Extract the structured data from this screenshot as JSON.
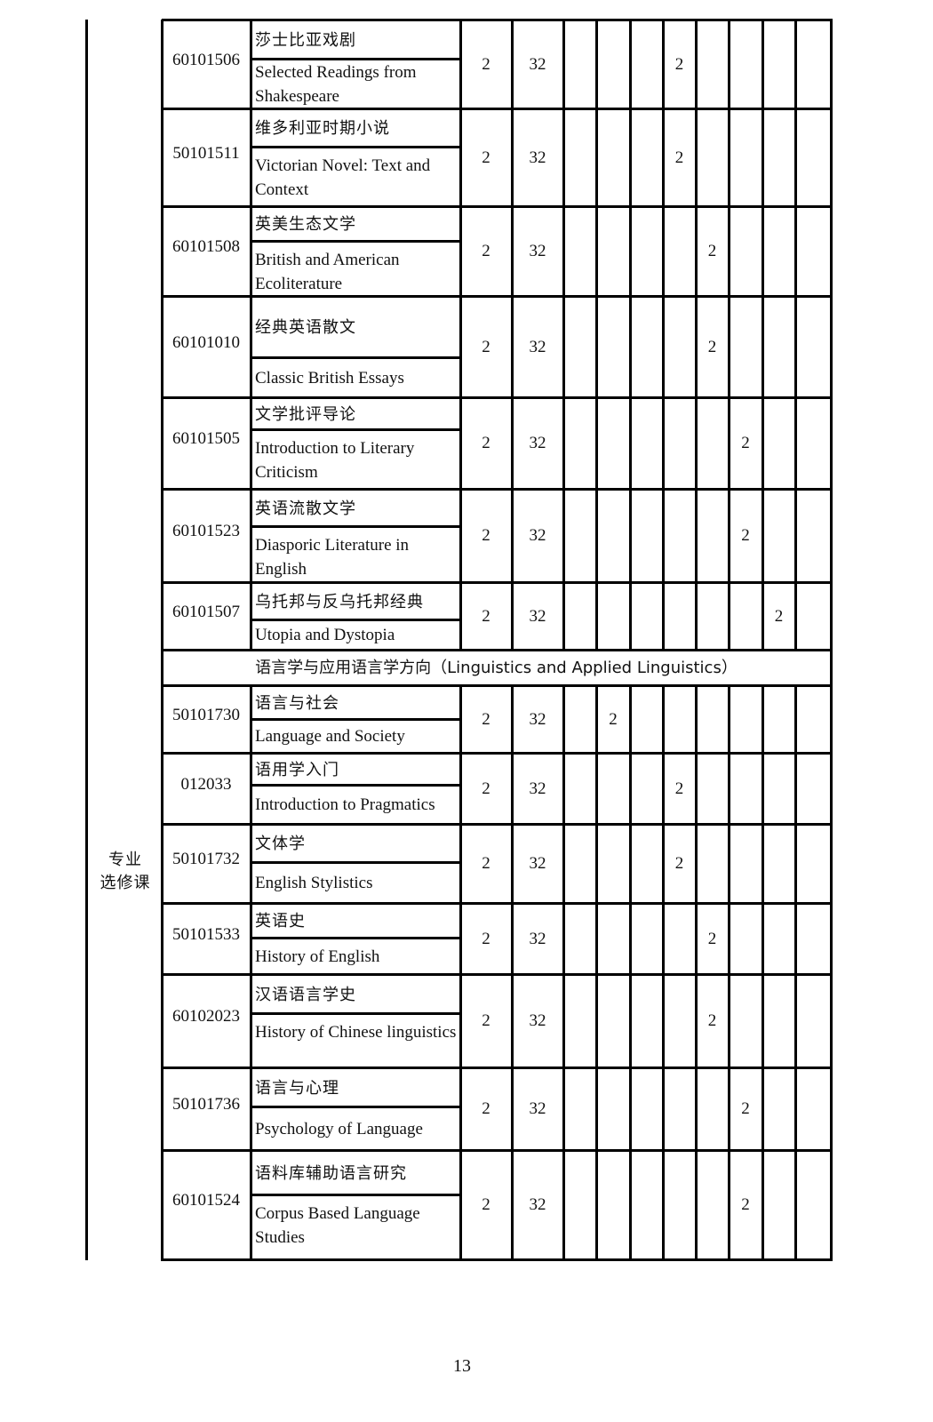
{
  "category_label": "专业\n选修课",
  "semester_columns": 8,
  "rows_group1": [
    {
      "code": "60101506",
      "name_cn": "莎士比亚戏剧",
      "name_en": "Selected Readings from Shakespeare",
      "credits": "2",
      "hours": "32",
      "semester": 4,
      "value": "2"
    },
    {
      "code": "50101511",
      "name_cn": "维多利亚时期小说",
      "name_en": "Victorian Novel: Text and Context",
      "credits": "2",
      "hours": "32",
      "semester": 4,
      "value": "2"
    },
    {
      "code": "60101508",
      "name_cn": "英美生态文学",
      "name_en": "British and American Ecoliterature",
      "credits": "2",
      "hours": "32",
      "semester": 5,
      "value": "2"
    },
    {
      "code": "60101010",
      "name_cn": "经典英语散文",
      "name_en": "Classic British Essays",
      "credits": "2",
      "hours": "32",
      "semester": 5,
      "value": "2"
    },
    {
      "code": "60101505",
      "name_cn": "文学批评导论",
      "name_en": "Introduction to Literary Criticism",
      "credits": "2",
      "hours": "32",
      "semester": 6,
      "value": "2"
    },
    {
      "code": "60101523",
      "name_cn": "英语流散文学",
      "name_en": "Diasporic Literature in English",
      "credits": "2",
      "hours": "32",
      "semester": 6,
      "value": "2"
    },
    {
      "code": "60101507",
      "name_cn": "乌托邦与反乌托邦经典",
      "name_en": "Utopia and Dystopia",
      "credits": "2",
      "hours": "32",
      "semester": 7,
      "value": "2"
    }
  ],
  "section_heading": "语言学与应用语言学方向（Linguistics and Applied Linguistics）",
  "rows_group2": [
    {
      "code": "50101730",
      "name_cn": "语言与社会",
      "name_en": "Language and Society",
      "credits": "2",
      "hours": "32",
      "semester": 2,
      "value": "2"
    },
    {
      "code": "012033",
      "name_cn": "语用学入门",
      "name_en": "Introduction to Pragmatics",
      "credits": "2",
      "hours": "32",
      "semester": 4,
      "value": "2"
    },
    {
      "code": "50101732",
      "name_cn": "文体学",
      "name_en": "English Stylistics",
      "credits": "2",
      "hours": "32",
      "semester": 4,
      "value": "2"
    },
    {
      "code": "50101533",
      "name_cn": "英语史",
      "name_en": "History of English",
      "credits": "2",
      "hours": "32",
      "semester": 5,
      "value": "2"
    },
    {
      "code": "60102023",
      "name_cn": "汉语语言学史",
      "name_en": "History of Chinese linguistics",
      "credits": "2",
      "hours": "32",
      "semester": 5,
      "value": "2"
    },
    {
      "code": "50101736",
      "name_cn": "语言与心理",
      "name_en": "Psychology of Language",
      "credits": "2",
      "hours": "32",
      "semester": 6,
      "value": "2"
    },
    {
      "code": "60101524",
      "name_cn": "语料库辅助语言研究",
      "name_en": "Corpus Based Language Studies",
      "credits": "2",
      "hours": "32",
      "semester": 6,
      "value": "2"
    }
  ],
  "page_number": "13"
}
